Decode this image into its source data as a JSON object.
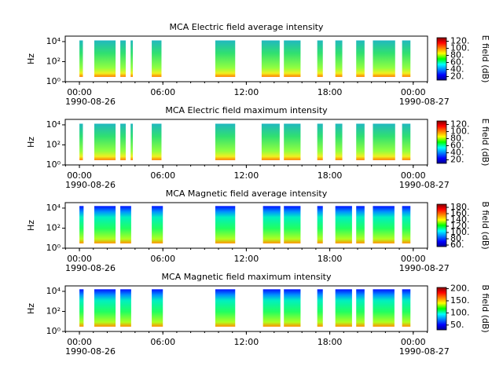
{
  "chart_data": [
    {
      "type": "spectrogram",
      "title": "MCA  Electric field average intensity",
      "ylabel": "Hz",
      "zlabel": "E field (dB)",
      "xlim": [
        -1.02,
        25.03
      ],
      "xticks": [
        {
          "value": 0,
          "label": "00:00"
        },
        {
          "value": 6,
          "label": "06:00"
        },
        {
          "value": 12,
          "label": "12:00"
        },
        {
          "value": 18,
          "label": "18:00"
        },
        {
          "value": 24,
          "label": "00:00"
        }
      ],
      "xdates": [
        {
          "value": 0,
          "label": "1990-08-26"
        },
        {
          "value": 24,
          "label": "1990-08-27"
        }
      ],
      "ylim": [
        1,
        35000
      ],
      "yticks": [
        {
          "value": 1,
          "label": "10⁰"
        },
        {
          "value": 100,
          "label": "10²"
        },
        {
          "value": 10000,
          "label": "10⁴"
        }
      ],
      "log_y": true,
      "frange": [
        3,
        13000
      ],
      "zlim": [
        10,
        130
      ],
      "zticks": [
        {
          "value": 20,
          "label": "20."
        },
        {
          "value": 40,
          "label": "40."
        },
        {
          "value": 60,
          "label": "60."
        },
        {
          "value": 80,
          "label": "80."
        },
        {
          "value": 100,
          "label": "100."
        },
        {
          "value": 120,
          "label": "120."
        }
      ],
      "field": "E",
      "intervals": [
        [
          0,
          0.25
        ],
        [
          1.07,
          2.6
        ],
        [
          2.94,
          3.33
        ],
        [
          3.68,
          3.84
        ],
        [
          5.2,
          5.9
        ],
        [
          9.77,
          11.2
        ],
        [
          13.1,
          14.4
        ],
        [
          14.7,
          15.9
        ],
        [
          17.1,
          17.5
        ],
        [
          18.4,
          18.9
        ],
        [
          19.9,
          20.5
        ],
        [
          21.1,
          22.7
        ],
        [
          23.2,
          23.8
        ]
      ]
    },
    {
      "type": "spectrogram",
      "title": "MCA  Electric field maximum intensity",
      "ylabel": "Hz",
      "zlabel": "E field (dB)",
      "xlim": [
        -1.02,
        25.03
      ],
      "xticks": [
        {
          "value": 0,
          "label": "00:00"
        },
        {
          "value": 6,
          "label": "06:00"
        },
        {
          "value": 12,
          "label": "12:00"
        },
        {
          "value": 18,
          "label": "18:00"
        },
        {
          "value": 24,
          "label": "00:00"
        }
      ],
      "xdates": [
        {
          "value": 0,
          "label": "1990-08-26"
        },
        {
          "value": 24,
          "label": "1990-08-27"
        }
      ],
      "ylim": [
        1,
        35000
      ],
      "yticks": [
        {
          "value": 1,
          "label": "10⁰"
        },
        {
          "value": 100,
          "label": "10²"
        },
        {
          "value": 10000,
          "label": "10⁴"
        }
      ],
      "log_y": true,
      "frange": [
        3,
        13000
      ],
      "zlim": [
        10,
        130
      ],
      "zticks": [
        {
          "value": 20,
          "label": "20."
        },
        {
          "value": 40,
          "label": "40."
        },
        {
          "value": 60,
          "label": "60."
        },
        {
          "value": 80,
          "label": "80."
        },
        {
          "value": 100,
          "label": "100."
        },
        {
          "value": 120,
          "label": "120."
        }
      ],
      "field": "E",
      "intervals": [
        [
          0,
          0.25
        ],
        [
          1.07,
          2.6
        ],
        [
          2.94,
          3.33
        ],
        [
          3.68,
          3.84
        ],
        [
          5.2,
          5.9
        ],
        [
          9.77,
          11.2
        ],
        [
          13.1,
          14.4
        ],
        [
          14.7,
          15.9
        ],
        [
          17.1,
          17.5
        ],
        [
          18.4,
          18.9
        ],
        [
          19.9,
          20.5
        ],
        [
          21.1,
          22.7
        ],
        [
          23.2,
          23.8
        ]
      ]
    },
    {
      "type": "spectrogram",
      "title": "MCA  Magnetic field average intensity",
      "ylabel": "Hz",
      "zlabel": "B field (dB)",
      "xlim": [
        -1.02,
        25.03
      ],
      "xticks": [
        {
          "value": 0,
          "label": "00:00"
        },
        {
          "value": 6,
          "label": "06:00"
        },
        {
          "value": 12,
          "label": "12:00"
        },
        {
          "value": 18,
          "label": "18:00"
        },
        {
          "value": 24,
          "label": "00:00"
        }
      ],
      "xdates": [
        {
          "value": 0,
          "label": "1990-08-26"
        },
        {
          "value": 24,
          "label": "1990-08-27"
        }
      ],
      "ylim": [
        1,
        35000
      ],
      "yticks": [
        {
          "value": 1,
          "label": "10⁰"
        },
        {
          "value": 100,
          "label": "10²"
        },
        {
          "value": 10000,
          "label": "10⁴"
        }
      ],
      "log_y": true,
      "frange": [
        3,
        16000
      ],
      "zlim": [
        55,
        190
      ],
      "zticks": [
        {
          "value": 60,
          "label": "60."
        },
        {
          "value": 80,
          "label": "80."
        },
        {
          "value": 100,
          "label": "100."
        },
        {
          "value": 120,
          "label": "120."
        },
        {
          "value": 140,
          "label": "140."
        },
        {
          "value": 160,
          "label": "160."
        },
        {
          "value": 180,
          "label": "180."
        }
      ],
      "field": "B",
      "intervals": [
        [
          0,
          0.3
        ],
        [
          1.07,
          2.6
        ],
        [
          2.94,
          3.72
        ],
        [
          5.2,
          6.0
        ],
        [
          9.77,
          11.2
        ],
        [
          13.2,
          14.45
        ],
        [
          14.7,
          15.9
        ],
        [
          17.1,
          17.5
        ],
        [
          18.4,
          19.6
        ],
        [
          19.9,
          20.5
        ],
        [
          21.1,
          22.65
        ],
        [
          23.2,
          23.8
        ]
      ]
    },
    {
      "type": "spectrogram",
      "title": "MCA  Magnetic field maximum intensity",
      "ylabel": "Hz",
      "zlabel": "B field (dB)",
      "xlim": [
        -1.02,
        25.03
      ],
      "xticks": [
        {
          "value": 0,
          "label": "00:00"
        },
        {
          "value": 6,
          "label": "06:00"
        },
        {
          "value": 12,
          "label": "12:00"
        },
        {
          "value": 18,
          "label": "18:00"
        },
        {
          "value": 24,
          "label": "00:00"
        }
      ],
      "xdates": [
        {
          "value": 0,
          "label": "1990-08-26"
        },
        {
          "value": 24,
          "label": "1990-08-27"
        }
      ],
      "ylim": [
        1,
        35000
      ],
      "yticks": [
        {
          "value": 1,
          "label": "10⁰"
        },
        {
          "value": 100,
          "label": "10²"
        },
        {
          "value": 10000,
          "label": "10⁴"
        }
      ],
      "log_y": true,
      "frange": [
        3,
        16000
      ],
      "zlim": [
        30,
        205
      ],
      "zticks": [
        {
          "value": 50,
          "label": "50."
        },
        {
          "value": 100,
          "label": "100."
        },
        {
          "value": 150,
          "label": "150."
        },
        {
          "value": 200,
          "label": "200."
        }
      ],
      "field": "B",
      "intervals": [
        [
          0,
          0.3
        ],
        [
          1.07,
          2.6
        ],
        [
          2.94,
          3.72
        ],
        [
          5.2,
          6.0
        ],
        [
          9.77,
          11.2
        ],
        [
          13.2,
          14.45
        ],
        [
          14.7,
          15.9
        ],
        [
          17.1,
          17.5
        ],
        [
          18.4,
          19.6
        ],
        [
          19.9,
          20.5
        ],
        [
          21.1,
          22.65
        ],
        [
          23.2,
          23.8
        ]
      ]
    }
  ]
}
